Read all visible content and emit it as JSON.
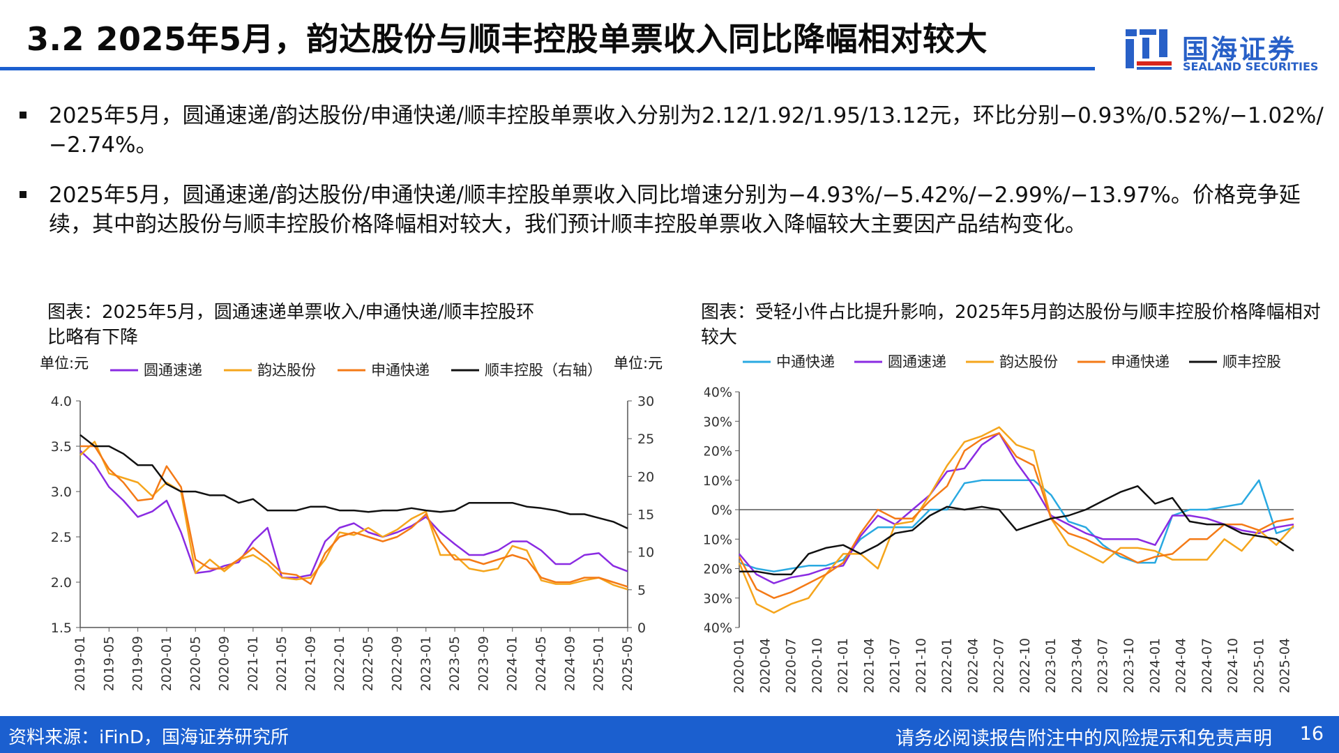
{
  "header": {
    "title": "3.2 2025年5月，韵达股份与顺丰控股单票收入同比降幅相对较大",
    "logo_cn": "国海证券",
    "logo_en": "SEALAND SECURITIES"
  },
  "bullets": [
    "2025年5月，圆通速递/韵达股份/申通快递/顺丰控股单票收入分别为2.12/1.92/1.95/13.12元，环比分别−0.93%/0.52%/−1.02%/−2.74%。",
    "2025年5月，圆通速递/韵达股份/申通快递/顺丰控股单票收入同比增速分别为−4.93%/−5.42%/−2.99%/−13.97%。价格竞争延续，其中韵达股份与顺丰控股价格降幅相对较大，我们预计顺丰控股单票收入降幅较大主要因产品结构变化。"
  ],
  "footer": {
    "source": "资料来源：iFinD，国海证券研究所",
    "disclaimer": "请务必阅读报告附注中的风险提示和免责声明",
    "page": "16"
  },
  "colors": {
    "accent": "#1b5fcf",
    "yto": "#8a2be2",
    "yunda": "#f5a51c",
    "sto": "#f47a16",
    "sf": "#111111",
    "zto": "#29a9e1"
  },
  "chart_data": [
    {
      "type": "line",
      "title": "图表：2025年5月，圆通速递单票收入/申通快递/顺丰控股环比略有下降",
      "left_unit": "单位:元",
      "right_unit": "单位:元",
      "ylim": [
        1.5,
        4.0
      ],
      "y2lim": [
        0,
        30
      ],
      "yticks": [
        "4.0",
        "3.5",
        "3.0",
        "2.5",
        "2.0",
        "1.5"
      ],
      "y2ticks": [
        "30",
        "25",
        "20",
        "15",
        "10",
        "5",
        "0"
      ],
      "xticks": [
        "2019-01",
        "2019-05",
        "2019-09",
        "2020-01",
        "2020-05",
        "2020-09",
        "2021-01",
        "2021-05",
        "2021-09",
        "2022-01",
        "2022-05",
        "2022-09",
        "2023-01",
        "2023-05",
        "2023-09",
        "2024-01",
        "2024-05",
        "2024-09",
        "2025-01",
        "2025-05"
      ],
      "x": [
        "2019-01",
        "2019-03",
        "2019-05",
        "2019-07",
        "2019-09",
        "2019-11",
        "2020-01",
        "2020-03",
        "2020-05",
        "2020-07",
        "2020-09",
        "2020-11",
        "2021-01",
        "2021-03",
        "2021-05",
        "2021-07",
        "2021-09",
        "2021-11",
        "2022-01",
        "2022-03",
        "2022-05",
        "2022-07",
        "2022-09",
        "2022-11",
        "2023-01",
        "2023-03",
        "2023-05",
        "2023-07",
        "2023-09",
        "2023-11",
        "2024-01",
        "2024-03",
        "2024-05",
        "2024-07",
        "2024-09",
        "2024-11",
        "2025-01",
        "2025-03",
        "2025-05"
      ],
      "series": [
        {
          "name": "圆通速递",
          "axis": "left",
          "color": "#8a2be2",
          "values": [
            3.45,
            3.3,
            3.05,
            2.9,
            2.72,
            2.78,
            2.9,
            2.55,
            2.1,
            2.12,
            2.18,
            2.22,
            2.45,
            2.6,
            2.05,
            2.05,
            2.08,
            2.45,
            2.6,
            2.65,
            2.55,
            2.5,
            2.55,
            2.62,
            2.72,
            2.55,
            2.42,
            2.3,
            2.3,
            2.35,
            2.45,
            2.45,
            2.35,
            2.2,
            2.2,
            2.3,
            2.32,
            2.18,
            2.12
          ]
        },
        {
          "name": "韵达股份",
          "axis": "left",
          "color": "#f5a51c",
          "values": [
            3.4,
            3.55,
            3.2,
            3.15,
            3.1,
            2.95,
            3.1,
            3.0,
            2.1,
            2.25,
            2.12,
            2.25,
            2.3,
            2.2,
            2.05,
            2.03,
            2.05,
            2.25,
            2.55,
            2.52,
            2.6,
            2.5,
            2.58,
            2.7,
            2.78,
            2.3,
            2.3,
            2.15,
            2.12,
            2.15,
            2.4,
            2.35,
            2.02,
            1.98,
            1.98,
            2.02,
            2.05,
            1.97,
            1.92
          ]
        },
        {
          "name": "申通快递",
          "axis": "left",
          "color": "#f47a16",
          "values": [
            3.5,
            3.5,
            3.25,
            3.1,
            2.9,
            2.92,
            3.28,
            3.05,
            2.25,
            2.15,
            2.15,
            2.25,
            2.38,
            2.25,
            2.1,
            2.08,
            1.98,
            2.32,
            2.5,
            2.55,
            2.5,
            2.45,
            2.5,
            2.6,
            2.75,
            2.45,
            2.25,
            2.25,
            2.2,
            2.25,
            2.3,
            2.25,
            2.05,
            2.0,
            2.0,
            2.05,
            2.05,
            2.0,
            1.95
          ]
        },
        {
          "name": "顺丰控股（右轴）",
          "axis": "right",
          "color": "#111111",
          "values": [
            25.5,
            24,
            24,
            23,
            21.5,
            21.5,
            19,
            18,
            18,
            17.5,
            17.5,
            16.5,
            17,
            15.5,
            15.5,
            15.5,
            16,
            16,
            15.5,
            15.5,
            15.3,
            15.5,
            15.5,
            15.8,
            15.5,
            15.3,
            15.5,
            16.5,
            16.5,
            16.5,
            16.5,
            16,
            15.8,
            15.5,
            15,
            15,
            14.5,
            14,
            13.12
          ]
        }
      ]
    },
    {
      "type": "line",
      "title": "图表：受轻小件占比提升影响，2025年5月韵达股份与顺丰控股价格降幅相对较大",
      "ylim": [
        -40,
        40
      ],
      "yticks": [
        "40%",
        "30%",
        "20%",
        "10%",
        "0%",
        "-10%",
        "-20%",
        "-30%",
        "-40%"
      ],
      "ytick_values": [
        40,
        30,
        20,
        10,
        0,
        -10,
        -20,
        -30,
        -40
      ],
      "xticks": [
        "2020-01",
        "2020-04",
        "2020-07",
        "2020-10",
        "2021-01",
        "2021-04",
        "2021-07",
        "2021-10",
        "2022-01",
        "2022-04",
        "2022-07",
        "2022-10",
        "2023-01",
        "2023-04",
        "2023-07",
        "2023-10",
        "2024-01",
        "2024-04",
        "2024-07",
        "2024-10",
        "2025-01",
        "2025-04"
      ],
      "x": [
        "2020-01",
        "2020-03",
        "2020-05",
        "2020-07",
        "2020-09",
        "2020-11",
        "2021-01",
        "2021-03",
        "2021-05",
        "2021-07",
        "2021-09",
        "2021-11",
        "2022-01",
        "2022-03",
        "2022-05",
        "2022-07",
        "2022-09",
        "2022-11",
        "2023-01",
        "2023-03",
        "2023-05",
        "2023-07",
        "2023-09",
        "2023-11",
        "2024-01",
        "2024-03",
        "2024-05",
        "2024-07",
        "2024-09",
        "2024-11",
        "2025-01",
        "2025-03",
        "2025-05"
      ],
      "series": [
        {
          "name": "中通快递",
          "color": "#29a9e1",
          "values": [
            -18,
            -20,
            -21,
            -20,
            -19,
            -19,
            -17,
            -10,
            -6,
            -6,
            -6,
            0,
            0,
            9,
            10,
            10,
            10,
            10,
            5,
            -4,
            -6,
            -12,
            -16,
            -18,
            -18,
            -2,
            0,
            0,
            1,
            2,
            10,
            -8,
            -6
          ]
        },
        {
          "name": "圆通速递",
          "color": "#8a2be2",
          "values": [
            -15,
            -22,
            -25,
            -23,
            -22,
            -20,
            -19,
            -9,
            -2,
            -5,
            0,
            5,
            13,
            14,
            22,
            26,
            16,
            8,
            -2,
            -5,
            -8,
            -10,
            -10,
            -10,
            -12,
            -2,
            -2,
            -3,
            -5,
            -7,
            -8,
            -6,
            -5
          ]
        },
        {
          "name": "韵达股份",
          "color": "#f5a51c",
          "values": [
            -18,
            -32,
            -35,
            -32,
            -30,
            -22,
            -15,
            -15,
            -20,
            -5,
            -4,
            5,
            15,
            23,
            25,
            28,
            22,
            20,
            -3,
            -12,
            -15,
            -18,
            -13,
            -13,
            -14,
            -17,
            -17,
            -17,
            -10,
            -14,
            -7,
            -12,
            -5.42
          ]
        },
        {
          "name": "申通快递",
          "color": "#f47a16",
          "values": [
            -16,
            -27,
            -30,
            -28,
            -25,
            -22,
            -18,
            -8,
            0,
            -3,
            -3,
            3,
            8,
            20,
            24,
            26,
            18,
            15,
            -3,
            -8,
            -10,
            -13,
            -15,
            -18,
            -16,
            -15,
            -10,
            -10,
            -5,
            -5,
            -7,
            -4,
            -2.99
          ]
        },
        {
          "name": "顺丰控股",
          "color": "#111111",
          "values": [
            -21,
            -21,
            -22,
            -22,
            -15,
            -13,
            -12,
            -15,
            -12,
            -8,
            -7,
            -2,
            1,
            0,
            1,
            0,
            -7,
            -5,
            -3,
            -2,
            0,
            3,
            6,
            8,
            2,
            4,
            -4,
            -5,
            -5,
            -8,
            -9,
            -10,
            -13.97
          ]
        }
      ]
    }
  ]
}
